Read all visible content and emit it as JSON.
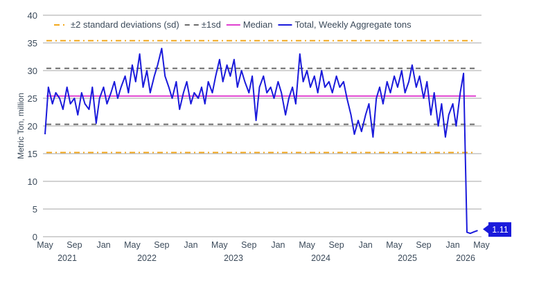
{
  "chart_data": {
    "type": "line",
    "title": "",
    "ylabel": "Metric Ton, million",
    "xlabel": "",
    "ylim": [
      0,
      40
    ],
    "yticks": [
      0,
      5,
      10,
      15,
      20,
      25,
      30,
      35,
      40
    ],
    "xlim": [
      "2021-05-01",
      "2026-05-01"
    ],
    "xtick_months": [
      "May",
      "Sep",
      "Jan",
      "May",
      "Sep",
      "Jan",
      "May",
      "Sep",
      "Jan",
      "May",
      "Sep",
      "Jan",
      "May",
      "Sep",
      "Jan",
      "May"
    ],
    "xtick_dates": [
      "2021-05-01",
      "2021-09-01",
      "2022-01-01",
      "2022-05-01",
      "2022-09-01",
      "2023-01-01",
      "2023-05-01",
      "2023-09-01",
      "2024-01-01",
      "2024-05-01",
      "2024-09-01",
      "2025-01-01",
      "2025-05-01",
      "2025-09-01",
      "2026-01-01",
      "2026-05-01"
    ],
    "year_labels": [
      "2021",
      "2022",
      "2023",
      "2024",
      "2025",
      "2026"
    ],
    "grid": "horizontal",
    "legend_placement": "top-left",
    "legend": [
      {
        "label": "±2 standard deviations (sd)",
        "style": "dash-dot",
        "color": "#f2a81d"
      },
      {
        "label": "±1sd",
        "style": "dashed",
        "color": "#6b6b6b"
      },
      {
        "label": "Median",
        "style": "solid",
        "color": "#e040d0"
      },
      {
        "label": "Total, Weekly Aggregate tons",
        "style": "solid",
        "color": "#1a1adb"
      }
    ],
    "reference_lines": {
      "plus_2sd": 35.4,
      "plus_1sd": 30.4,
      "median": 25.4,
      "minus_1sd": 20.3,
      "minus_2sd": 15.2
    },
    "series": [
      {
        "name": "Total, Weekly Aggregate tons",
        "color": "#1a1adb",
        "x": [
          "2021-05-01",
          "2021-05-15",
          "2021-06-01",
          "2021-06-15",
          "2021-07-01",
          "2021-07-15",
          "2021-08-01",
          "2021-08-15",
          "2021-09-01",
          "2021-09-15",
          "2021-10-01",
          "2021-10-15",
          "2021-11-01",
          "2021-11-15",
          "2021-12-01",
          "2021-12-15",
          "2022-01-01",
          "2022-01-15",
          "2022-02-01",
          "2022-02-15",
          "2022-03-01",
          "2022-03-15",
          "2022-04-01",
          "2022-04-15",
          "2022-05-01",
          "2022-05-15",
          "2022-06-01",
          "2022-06-15",
          "2022-07-01",
          "2022-07-15",
          "2022-08-01",
          "2022-08-15",
          "2022-09-01",
          "2022-09-15",
          "2022-10-01",
          "2022-10-15",
          "2022-11-01",
          "2022-11-15",
          "2022-12-01",
          "2022-12-15",
          "2023-01-01",
          "2023-01-15",
          "2023-02-01",
          "2023-02-15",
          "2023-03-01",
          "2023-03-15",
          "2023-04-01",
          "2023-04-15",
          "2023-05-01",
          "2023-05-15",
          "2023-06-01",
          "2023-06-15",
          "2023-07-01",
          "2023-07-15",
          "2023-08-01",
          "2023-08-15",
          "2023-09-01",
          "2023-09-15",
          "2023-10-01",
          "2023-10-15",
          "2023-11-01",
          "2023-11-15",
          "2023-12-01",
          "2023-12-15",
          "2024-01-01",
          "2024-01-15",
          "2024-02-01",
          "2024-02-15",
          "2024-03-01",
          "2024-03-15",
          "2024-04-01",
          "2024-04-15",
          "2024-05-01",
          "2024-05-15",
          "2024-06-01",
          "2024-06-15",
          "2024-07-01",
          "2024-07-15",
          "2024-08-01",
          "2024-08-15",
          "2024-09-01",
          "2024-09-15",
          "2024-10-01",
          "2024-10-15",
          "2024-11-01",
          "2024-11-15",
          "2024-12-01",
          "2024-12-15",
          "2025-01-01",
          "2025-01-15",
          "2025-02-01",
          "2025-02-15",
          "2025-03-01",
          "2025-03-15",
          "2025-04-01",
          "2025-04-15",
          "2025-05-01",
          "2025-05-15",
          "2025-06-01",
          "2025-06-15",
          "2025-07-01",
          "2025-07-15",
          "2025-08-01",
          "2025-08-15",
          "2025-09-01",
          "2025-09-15",
          "2025-10-01",
          "2025-10-15",
          "2025-11-01",
          "2025-11-15",
          "2025-12-01",
          "2025-12-15",
          "2026-01-01",
          "2026-01-15",
          "2026-02-01",
          "2026-02-15",
          "2026-03-01",
          "2026-03-15",
          "2026-04-01",
          "2026-04-15"
        ],
        "values": [
          18.5,
          27,
          24,
          26,
          25,
          23,
          27,
          24,
          25,
          22,
          26,
          24,
          23,
          27,
          20.5,
          25,
          27,
          24,
          26,
          28,
          25,
          27,
          29,
          26,
          31,
          28,
          33,
          27,
          30,
          26,
          29,
          31,
          34,
          29,
          27,
          25,
          28,
          23,
          26,
          28,
          24,
          26,
          25,
          27,
          24,
          28,
          26,
          29,
          32,
          28,
          31,
          29,
          32,
          27,
          30,
          28,
          26,
          29,
          21,
          27,
          29,
          26,
          27,
          25,
          28,
          26,
          22,
          25,
          27,
          24,
          33,
          28,
          30,
          27,
          29,
          26,
          30,
          27,
          28,
          26,
          29,
          27,
          28,
          25,
          22,
          18.5,
          21,
          19,
          22,
          24,
          18,
          25,
          27,
          24,
          28,
          26,
          29,
          27,
          30,
          26,
          28,
          31,
          27,
          29,
          25,
          28,
          22,
          26,
          20,
          24,
          18,
          22,
          24,
          20,
          26,
          29.5,
          0.8,
          0.6,
          0.9,
          1.11
        ]
      }
    ],
    "annotations": [
      {
        "date": "2026-04-15",
        "value": 1.11,
        "label": "1.11"
      }
    ]
  }
}
